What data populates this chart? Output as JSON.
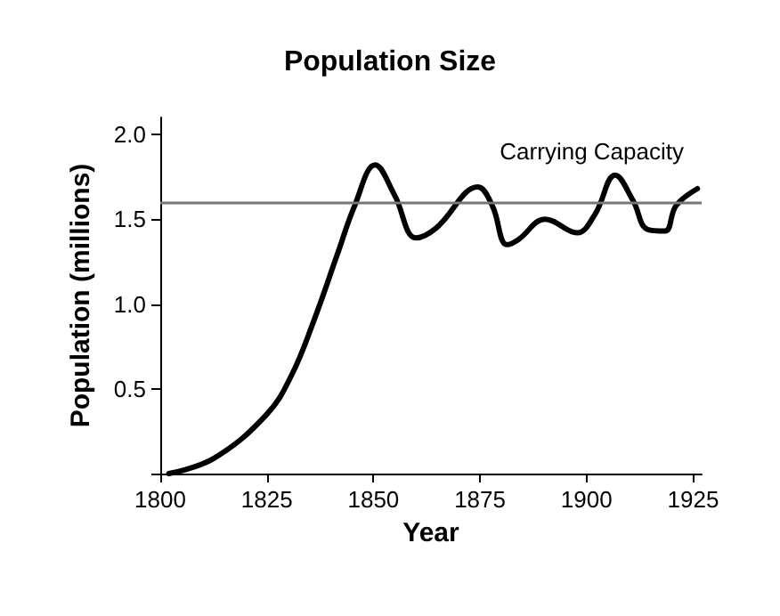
{
  "chart_data": {
    "type": "line",
    "title": "Population Size",
    "xlabel": "Year",
    "ylabel": "Population (millions)",
    "x": [
      1802,
      1812.6,
      1825,
      1830.8,
      1836,
      1841.5,
      1845.6,
      1850.4,
      1855,
      1860,
      1864.8,
      1874.5,
      1877.9,
      1881.3,
      1884,
      1890.3,
      1897.8,
      1902,
      1906.7,
      1910.9,
      1914.3,
      1918.4,
      1921,
      1926
    ],
    "series": [
      {
        "color": "#000000",
        "values": [
          0,
          0.09,
          0.35,
          0.58,
          0.9,
          1.29,
          1.58,
          1.82,
          1.64,
          1.39,
          1.45,
          1.69,
          1.58,
          1.35,
          1.38,
          1.5,
          1.42,
          1.53,
          1.76,
          1.61,
          1.44,
          1.43,
          1.58,
          1.68
        ]
      }
    ],
    "xlim": [
      1800,
      1927
    ],
    "xticks": [
      1800,
      1825,
      1850,
      1875,
      1900,
      1925
    ],
    "ylim": [
      0,
      2.1
    ],
    "yticks": [
      {
        "value": 0,
        "label": null
      },
      0.5,
      {
        "value": 1,
        "label": "1.0"
      },
      1.5,
      {
        "value": 2,
        "label": "2.0"
      }
    ],
    "ref_lines": [
      {
        "axis": "y",
        "value": 1.6,
        "label": "Carrying Capacity",
        "color": "#777777"
      }
    ],
    "marker": "none",
    "line_style": "solid"
  }
}
